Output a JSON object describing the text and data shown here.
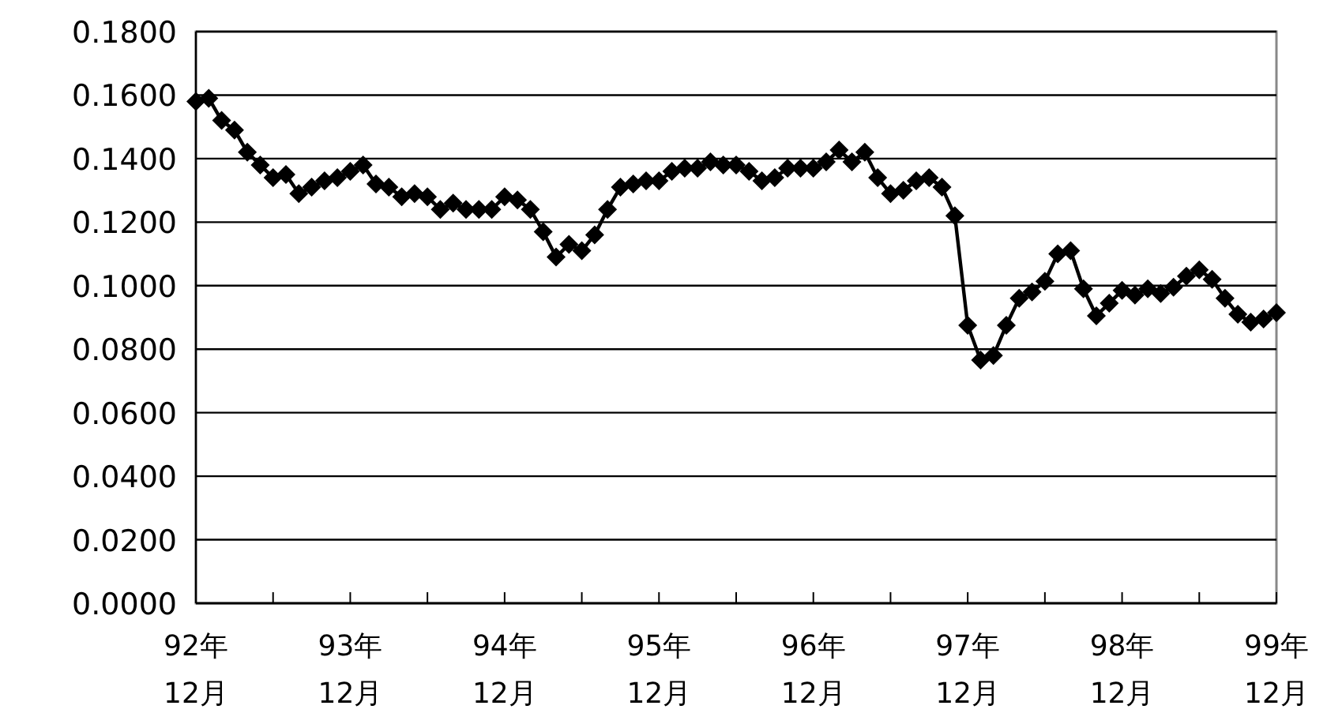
{
  "chart_data": {
    "type": "line",
    "categories": [
      "92年\n12月",
      null,
      null,
      null,
      null,
      null,
      null,
      null,
      null,
      null,
      null,
      null,
      "93年\n12月",
      null,
      null,
      null,
      null,
      null,
      null,
      null,
      null,
      null,
      null,
      null,
      "94年\n12月",
      null,
      null,
      null,
      null,
      null,
      null,
      null,
      null,
      null,
      null,
      null,
      "95年\n12月",
      null,
      null,
      null,
      null,
      null,
      null,
      null,
      null,
      null,
      null,
      null,
      "96年\n12月",
      null,
      null,
      null,
      null,
      null,
      null,
      null,
      null,
      null,
      null,
      null,
      "97年\n12月",
      null,
      null,
      null,
      null,
      null,
      null,
      null,
      null,
      null,
      null,
      null,
      "98年\n12月",
      null,
      null,
      null,
      null,
      null,
      null,
      null,
      null,
      null,
      null,
      null,
      "99年\n12月"
    ],
    "series": [
      {
        "color": "#000000",
        "values": [
          0.158,
          0.159,
          0.152,
          0.149,
          0.142,
          0.138,
          0.134,
          0.135,
          0.129,
          0.131,
          0.133,
          0.134,
          0.136,
          0.138,
          0.132,
          0.131,
          0.128,
          0.129,
          0.128,
          0.124,
          0.126,
          0.124,
          0.124,
          0.124,
          0.128,
          0.127,
          0.124,
          0.117,
          0.109,
          0.113,
          0.111,
          0.116,
          0.124,
          0.131,
          0.132,
          0.133,
          0.133,
          0.136,
          0.137,
          0.137,
          0.139,
          0.138,
          0.138,
          0.136,
          0.133,
          0.134,
          0.137,
          0.137,
          0.137,
          0.139,
          0.1427,
          0.139,
          0.142,
          0.134,
          0.129,
          0.13,
          0.133,
          0.134,
          0.131,
          0.122,
          0.0875,
          0.0766,
          0.078,
          0.0875,
          0.096,
          0.098,
          0.1014,
          0.11,
          0.111,
          0.099,
          0.0905,
          0.0945,
          0.0985,
          0.097,
          0.099,
          0.0975,
          0.0995,
          0.103,
          0.105,
          0.102,
          0.096,
          0.091,
          0.0885,
          0.0895,
          0.0915
        ]
      }
    ],
    "ylim": [
      0,
      0.18
    ],
    "yticks": [
      {
        "value": 0,
        "label": "0.0000"
      },
      {
        "value": 0.02,
        "label": "0.0200"
      },
      {
        "value": 0.04,
        "label": "0.0400"
      },
      {
        "value": 0.06,
        "label": "0.0600"
      },
      {
        "value": 0.08,
        "label": "0.0800"
      },
      {
        "value": 0.1,
        "label": "0.1000"
      },
      {
        "value": 0.12,
        "label": "0.1200"
      },
      {
        "value": 0.14,
        "label": "0.1400"
      },
      {
        "value": 0.16,
        "label": "0.1600"
      },
      {
        "value": 0.18,
        "label": "0.1800"
      }
    ],
    "grid": "y",
    "marker": "diamond",
    "line_style": "solid"
  }
}
